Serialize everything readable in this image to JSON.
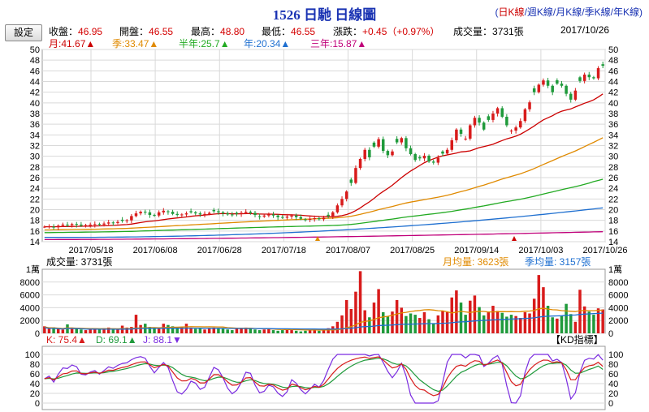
{
  "header": {
    "title": "1526 日馳  日線圖",
    "k_types": [
      "日K線",
      "週K線",
      "月K線",
      "季K線",
      "年K線"
    ],
    "selected_k_type": "日K線",
    "settings_label": "設定",
    "close_label": "收盤：",
    "close_value": "46.95",
    "open_label": "開盤：",
    "open_value": "46.55",
    "high_label": "最高：",
    "high_value": "48.80",
    "low_label": "最低：",
    "low_value": "46.55",
    "change_label": "漲跌：",
    "change_value": "+0.45（+0.97%）",
    "volume_label": "成交量：",
    "volume_value": "3731張",
    "date": "2017/10/26"
  },
  "ma_legend": [
    {
      "text": "月:41.67",
      "color": "#cc0000"
    },
    {
      "text": "季:33.47",
      "color": "#e08a00"
    },
    {
      "text": "半年:25.7",
      "color": "#22aa22"
    },
    {
      "text": "年:20.34",
      "color": "#1e6fd0"
    },
    {
      "text": "三年:15.87",
      "color": "#c0007a"
    }
  ],
  "volume_legend": {
    "volume_text": "成交量: 3731張",
    "month_avg_text": "月均量: 3623張",
    "month_avg_color": "#e08a00",
    "quarter_avg_text": "季均量: 3157張",
    "quarter_avg_color": "#1e6fd0",
    "unit_label": "1萬"
  },
  "kd_legend": {
    "k_text": "K: 75.4",
    "d_text": "D: 69.1",
    "j_text": "J: 88.1",
    "panel_label": "【KD指標】"
  },
  "colors": {
    "up": "#d81b1b",
    "down": "#1f9a3b",
    "grid": "#d9d9d9",
    "k": "#d81b1b",
    "d": "#1f9a3b",
    "j": "#7a2be0"
  },
  "chart_data": [
    {
      "type": "candlestick",
      "title": "1526 日馳  日線圖",
      "x_ticks": [
        "2017/05/18",
        "2017/06/08",
        "2017/06/28",
        "2017/07/18",
        "2017/08/07",
        "2017/08/25",
        "2017/09/14",
        "2017/10/03",
        "2017/10/26"
      ],
      "ylim": [
        14,
        50
      ],
      "y_ticks": [
        14,
        16,
        18,
        20,
        22,
        24,
        26,
        28,
        30,
        32,
        34,
        36,
        38,
        40,
        42,
        44,
        46,
        48,
        50
      ],
      "close_series": [
        16.8,
        16.9,
        16.7,
        17.0,
        17.2,
        17.1,
        17.3,
        17.2,
        17.0,
        17.1,
        17.2,
        17.3,
        17.2,
        17.4,
        17.6,
        17.5,
        17.7,
        17.9,
        18.0,
        18.8,
        19.3,
        19.6,
        19.5,
        19.0,
        18.9,
        19.5,
        19.8,
        19.6,
        19.2,
        19.0,
        19.1,
        19.3,
        19.5,
        19.3,
        19.1,
        19.2,
        19.4,
        19.7,
        19.5,
        19.3,
        19.1,
        19.0,
        19.2,
        19.4,
        19.6,
        19.4,
        19.0,
        18.7,
        18.9,
        19.1,
        18.9,
        18.6,
        18.5,
        18.7,
        18.9,
        18.6,
        18.3,
        18.1,
        18.3,
        18.4,
        18.2,
        18.5,
        18.8,
        19.5,
        20.8,
        22.0,
        23.4,
        25.0,
        27.8,
        29.5,
        31.2,
        29.8,
        31.8,
        33.2,
        31.0,
        30.2,
        30.9,
        32.6,
        33.4,
        31.5,
        30.4,
        29.3,
        29.6,
        30.1,
        29.0,
        28.8,
        29.7,
        30.5,
        31.2,
        33.0,
        35.0,
        34.2,
        33.3,
        35.8,
        37.2,
        36.3,
        35.0,
        36.8,
        38.0,
        39.0,
        37.4,
        35.8,
        34.8,
        35.4,
        36.6,
        38.8,
        40.1,
        42.0,
        43.4,
        44.2,
        43.2,
        42.0,
        43.6,
        43.2,
        41.7,
        40.6,
        42.3,
        44.1,
        45.3,
        44.8,
        44.6,
        46.5,
        46.95
      ],
      "series": [
        {
          "name": "月",
          "last": 41.67
        },
        {
          "name": "季",
          "last": 33.47
        },
        {
          "name": "半年",
          "last": 25.7
        },
        {
          "name": "年",
          "last": 20.34
        },
        {
          "name": "三年",
          "last": 15.87
        }
      ]
    },
    {
      "type": "bar",
      "title": "成交量",
      "ylim": [
        0,
        10000
      ],
      "y_ticks": [
        0,
        2000,
        4000,
        6000,
        8000
      ],
      "top_tick": "1萬",
      "values": [
        1100,
        800,
        950,
        700,
        600,
        1400,
        900,
        700,
        600,
        500,
        650,
        700,
        600,
        800,
        900,
        700,
        600,
        1200,
        900,
        1000,
        2900,
        1300,
        1500,
        1000,
        700,
        900,
        1500,
        1300,
        1100,
        900,
        1000,
        1500,
        900,
        700,
        800,
        600,
        700,
        900,
        800,
        700,
        600,
        500,
        700,
        800,
        900,
        700,
        600,
        500,
        600,
        700,
        500,
        400,
        500,
        600,
        500,
        400,
        300,
        400,
        500,
        600,
        400,
        700,
        800,
        1100,
        1800,
        2800,
        5200,
        3800,
        6500,
        9700,
        3600,
        2500,
        4800,
        6900,
        3300,
        2600,
        3400,
        5200,
        4000,
        2700,
        3100,
        2900,
        2400,
        3300,
        2200,
        1500,
        2800,
        3500,
        3300,
        5600,
        6700,
        4800,
        2900,
        5100,
        5900,
        4100,
        2800,
        3400,
        4300,
        3500,
        3200,
        2600,
        2900,
        2700,
        2400,
        3300,
        3100,
        5400,
        9100,
        7200,
        4300,
        2500,
        2300,
        2700,
        4600,
        3000,
        1800,
        6800,
        4200,
        3400,
        2900,
        3900,
        3731
      ],
      "series": [
        {
          "name": "月均量",
          "last": 3623
        },
        {
          "name": "季均量",
          "last": 3157
        }
      ]
    },
    {
      "type": "line",
      "title": "KD指標",
      "ylim": [
        0,
        100
      ],
      "y_ticks": [
        0,
        20,
        40,
        60,
        80,
        100
      ],
      "series": [
        {
          "name": "K",
          "last": 75.4
        },
        {
          "name": "D",
          "last": 69.1
        },
        {
          "name": "J",
          "last": 88.1
        }
      ]
    }
  ]
}
